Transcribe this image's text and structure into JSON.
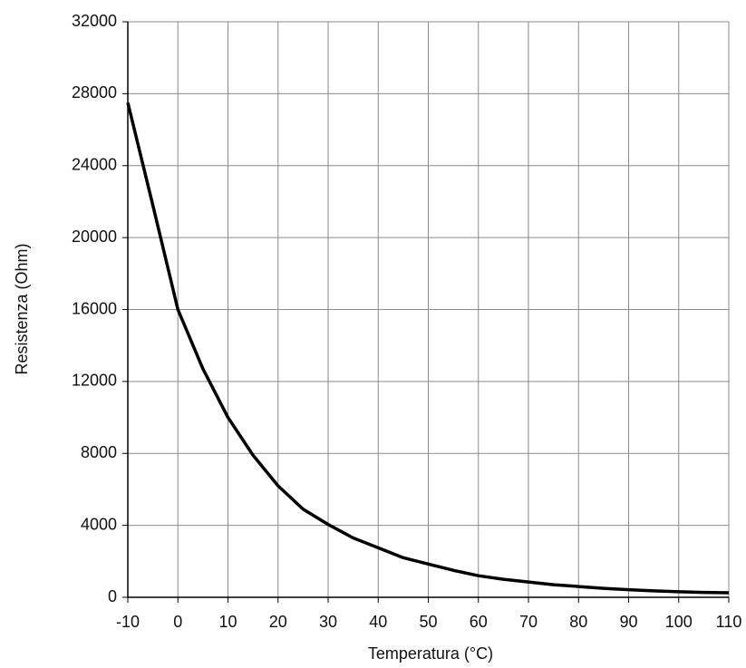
{
  "chart_data": {
    "type": "line",
    "x_label": "Temperatura (°C)",
    "y_label": "Resistenza (Ohm)",
    "x": [
      -10,
      -5,
      0,
      5,
      10,
      15,
      20,
      25,
      30,
      35,
      40,
      45,
      50,
      55,
      60,
      65,
      70,
      75,
      80,
      85,
      90,
      95,
      100,
      105,
      110
    ],
    "values": [
      27500,
      21800,
      16000,
      12700,
      10000,
      7900,
      6200,
      4900,
      4050,
      3300,
      2750,
      2200,
      1850,
      1500,
      1200,
      1000,
      850,
      700,
      600,
      500,
      420,
      360,
      310,
      270,
      250
    ],
    "color": "#000000",
    "xlim": [
      -10,
      110
    ],
    "xticks": [
      -10,
      0,
      10,
      20,
      30,
      40,
      50,
      60,
      70,
      80,
      90,
      100,
      110
    ],
    "ylim": [
      0,
      32000
    ],
    "yticks": [
      0,
      4000,
      8000,
      12000,
      16000,
      20000,
      24000,
      28000,
      32000
    ],
    "grid": true
  }
}
